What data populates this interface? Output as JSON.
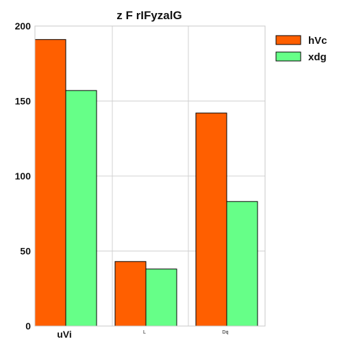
{
  "chart_data": {
    "type": "bar",
    "title": "z  F rIFyzalG",
    "xlabel": "",
    "ylabel": "",
    "categories": [
      "uVi",
      "L",
      "Dq"
    ],
    "series": [
      {
        "name": "hVc",
        "values": [
          191,
          43,
          142
        ],
        "color": "#ff5f00"
      },
      {
        "name": "xdg",
        "values": [
          157,
          38,
          83
        ],
        "color": "#66ff88"
      }
    ],
    "ylim": [
      0,
      200
    ],
    "yticks": [
      0,
      50,
      100,
      150,
      200
    ],
    "grid": true,
    "legend_position": "right"
  }
}
